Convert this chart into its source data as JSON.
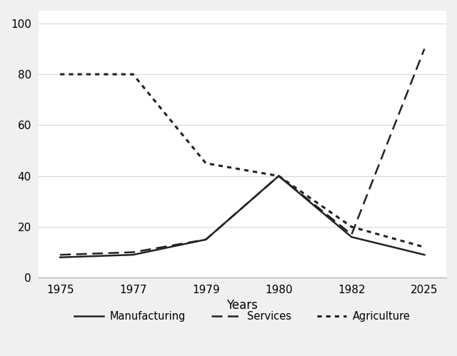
{
  "title": "",
  "xlabel": "Years",
  "ylabel": "",
  "background_color": "#f0f0f0",
  "plot_bg_color": "#ffffff",
  "xlim_min": -0.3,
  "xlim_max": 5.3,
  "ylim_min": 0,
  "ylim_max": 105,
  "yticks": [
    0,
    20,
    40,
    60,
    80,
    100
  ],
  "xtick_labels": [
    "1975",
    "1977",
    "1979",
    "1980",
    "1982",
    "2025"
  ],
  "xtick_positions": [
    0,
    1,
    2,
    3,
    4,
    5
  ],
  "manufacturing": {
    "x": [
      0,
      1,
      2,
      3,
      4,
      5
    ],
    "y": [
      8,
      9,
      15,
      40,
      16,
      9
    ],
    "color": "#222222",
    "linestyle": "solid",
    "linewidth": 1.8,
    "label": "Manufacturing"
  },
  "services": {
    "x": [
      0,
      1,
      2,
      3,
      4,
      5
    ],
    "y": [
      9,
      10,
      15,
      40,
      17,
      90
    ],
    "color": "#222222",
    "linestyle": "dashed",
    "linewidth": 1.8,
    "label": "Services"
  },
  "agriculture": {
    "x": [
      0,
      1,
      2,
      3,
      4,
      5
    ],
    "y": [
      80,
      80,
      45,
      40,
      20,
      12
    ],
    "color": "#222222",
    "linestyle": "dotted",
    "linewidth": 2.2,
    "label": "Agriculture"
  },
  "grid_color": "#d8d8d8",
  "legend_fontsize": 10.5,
  "axis_fontsize": 12,
  "tick_fontsize": 11
}
